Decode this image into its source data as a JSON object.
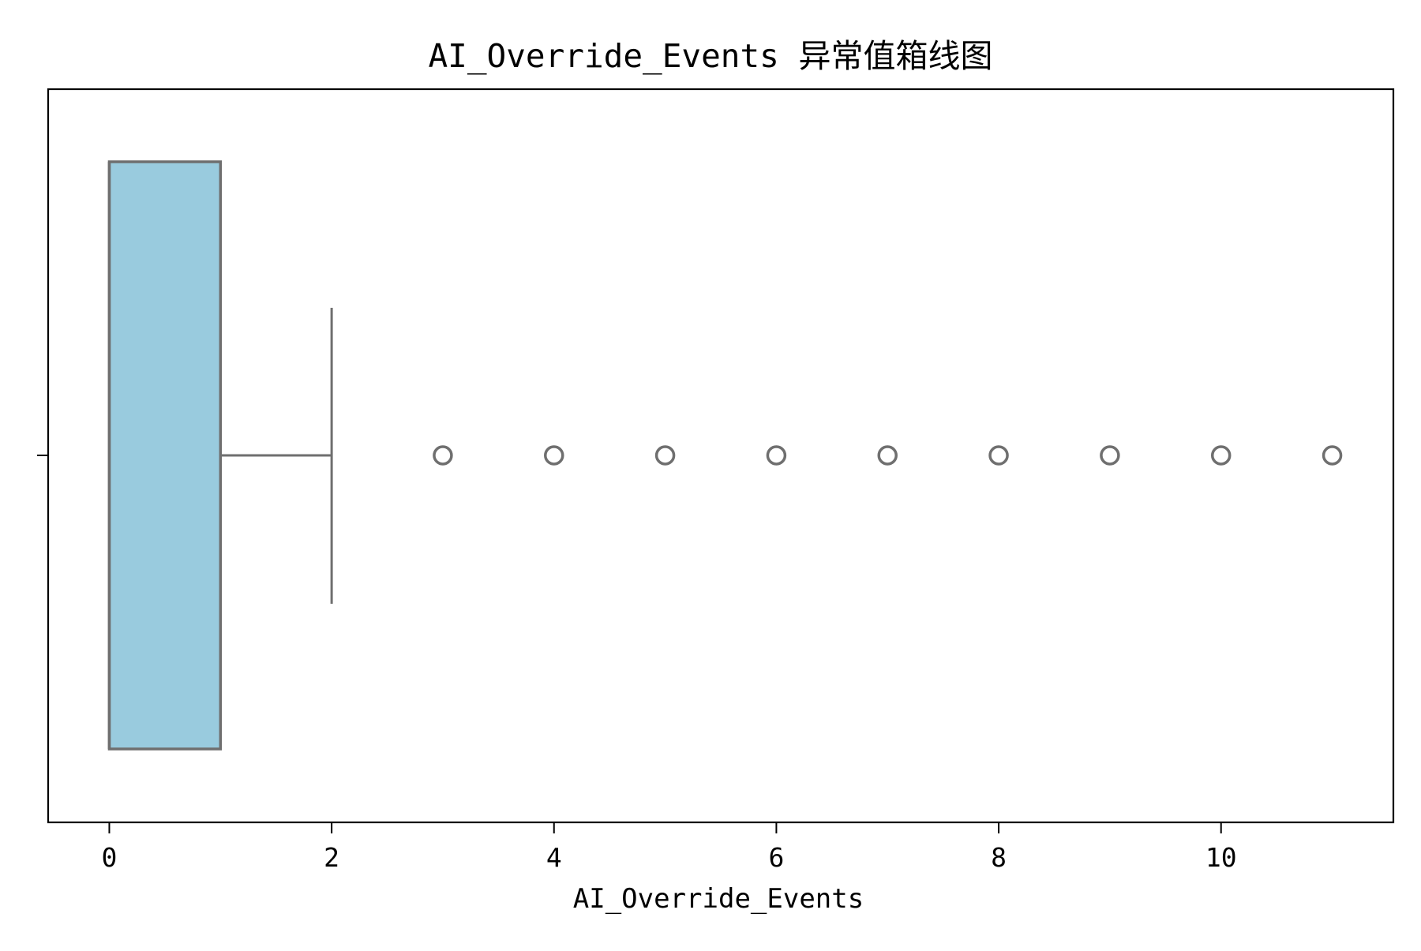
{
  "title": "AI_Override_Events 异常值箱线图",
  "chart_data": {
    "type": "box",
    "orientation": "horizontal",
    "title": "AI_Override_Events 异常值箱线图",
    "xlabel": "AI_Override_Events",
    "ylabel": "",
    "xlim": [
      -0.55,
      11.55
    ],
    "x_ticks": [
      0,
      2,
      4,
      6,
      8,
      10
    ],
    "x_tick_labels": [
      "0",
      "2",
      "4",
      "6",
      "8",
      "10"
    ],
    "grid": false,
    "box": {
      "min": 0,
      "q1": 0,
      "median": 0,
      "q3": 1,
      "whisker_low": 0,
      "whisker_high": 2
    },
    "outliers": [
      3,
      4,
      5,
      6,
      7,
      8,
      9,
      10,
      11
    ],
    "colors": {
      "box_fill": "#99cbde",
      "box_edge": "#6f6f6f",
      "axes": "#000000"
    }
  }
}
